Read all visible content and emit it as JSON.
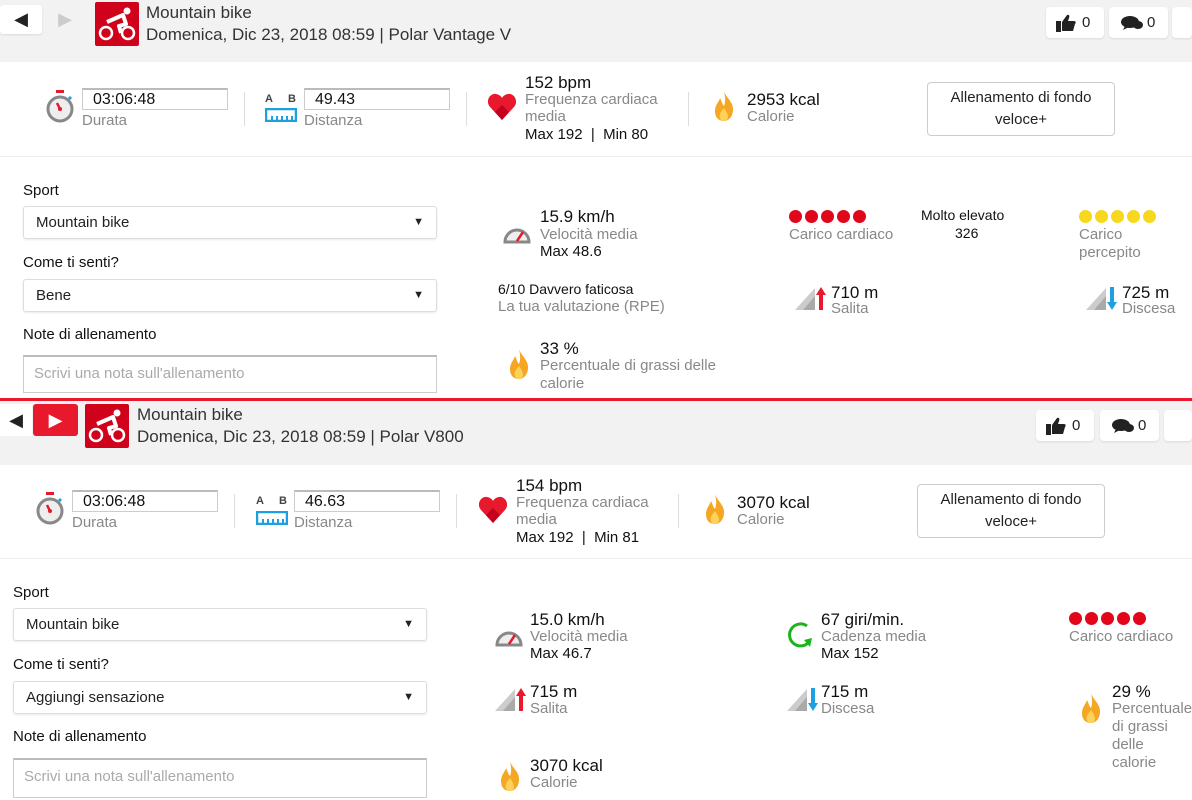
{
  "colors": {
    "brand": "#d0021b",
    "accent_red": "#e8192c",
    "calorie_orange": "#f5a623",
    "load_red": "#e2061b",
    "perceived_yellow": "#f8d81c",
    "descent_blue": "#1ea0e0",
    "cadence_green": "#1bb51b"
  },
  "top": {
    "title": "Mountain bike",
    "subtitle": "Domenica, Dic 23, 2018 08:59 | Polar Vantage V",
    "likes": "0",
    "comments": "0",
    "duration": {
      "value": "03:06:48",
      "label": "Durata"
    },
    "distance": {
      "a": "A",
      "b": "B",
      "value": "49.43",
      "label": "Distanza"
    },
    "hr": {
      "value": "152 bpm",
      "label1": "Frequenza cardiaca",
      "label2": "media",
      "maxmin": "Max 192  |  Min 80"
    },
    "calories": {
      "value": "2953 kcal",
      "label": "Calorie"
    },
    "training_benefit": {
      "line1": "Allenamento di fondo",
      "line2": "veloce+"
    },
    "form": {
      "sport_label": "Sport",
      "sport_value": "Mountain bike",
      "feel_label": "Come ti senti?",
      "feel_value": "Bene",
      "notes_label": "Note di allenamento",
      "notes_placeholder": "Scrivi una nota sull'allenamento"
    },
    "speed": {
      "value": "15.9 km/h",
      "label": "Velocità media",
      "max": "Max 48.6"
    },
    "cardio_load": {
      "label": "Carico cardiaco",
      "dots": 5,
      "level": "Molto elevato",
      "value": "326"
    },
    "perceived_load": {
      "label1": "Carico",
      "label2": "percepito",
      "dots": 5
    },
    "rpe": {
      "value": "6/10 Davvero faticosa",
      "label": "La tua valutazione (RPE)"
    },
    "ascent": {
      "value": "710 m",
      "label": "Salita"
    },
    "descent": {
      "value": "725 m",
      "label": "Discesa"
    },
    "fat": {
      "value": "33 %",
      "label1": "Percentuale di grassi delle",
      "label2": "calorie"
    }
  },
  "bottom": {
    "title": "Mountain bike",
    "subtitle": "Domenica, Dic 23, 2018 08:59 | Polar V800",
    "likes": "0",
    "comments": "0",
    "duration": {
      "value": "03:06:48",
      "label": "Durata"
    },
    "distance": {
      "a": "A",
      "b": "B",
      "value": "46.63",
      "label": "Distanza"
    },
    "hr": {
      "value": "154 bpm",
      "label1": "Frequenza cardiaca",
      "label2": "media",
      "maxmin": "Max 192  |  Min 81"
    },
    "calories": {
      "value": "3070 kcal",
      "label": "Calorie"
    },
    "training_benefit": {
      "line1": "Allenamento di fondo",
      "line2": "veloce+"
    },
    "form": {
      "sport_label": "Sport",
      "sport_value": "Mountain bike",
      "feel_label": "Come ti senti?",
      "feel_value": "Aggiungi sensazione",
      "notes_label": "Note di allenamento",
      "notes_placeholder": "Scrivi una nota sull'allenamento"
    },
    "speed": {
      "value": "15.0 km/h",
      "label": "Velocità media",
      "max": "Max 46.7"
    },
    "cadence": {
      "value": "67 giri/min.",
      "label": "Cadenza media",
      "max": "Max 152"
    },
    "cardio_load": {
      "label": "Carico cardiaco",
      "dots": 5
    },
    "ascent": {
      "value": "715 m",
      "label": "Salita"
    },
    "descent": {
      "value": "715 m",
      "label": "Discesa"
    },
    "fat": {
      "value": "29 %",
      "label1": "Percentuale di grassi delle",
      "label2": "calorie"
    },
    "calories2": {
      "value": "3070 kcal",
      "label": "Calorie"
    }
  }
}
